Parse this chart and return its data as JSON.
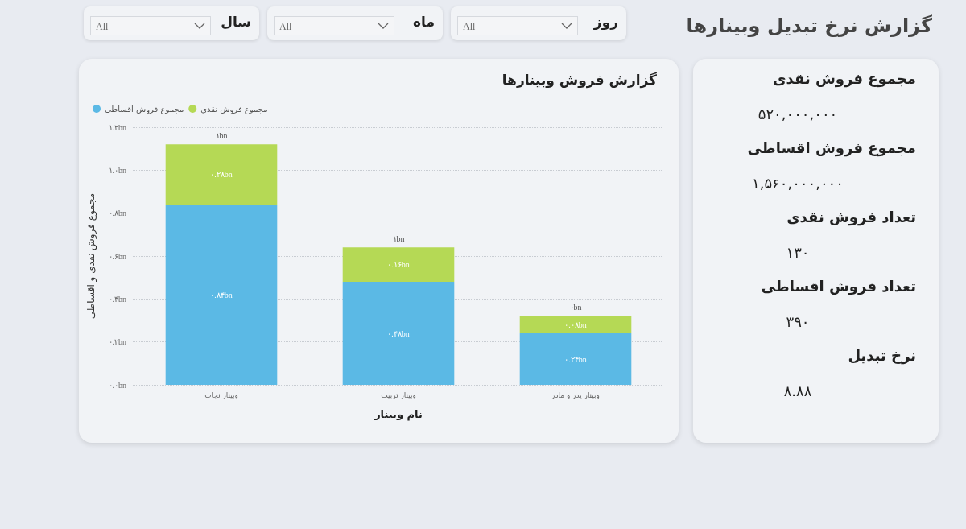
{
  "chart_data": [
    {
      "type": "bar",
      "title": "گزارش فروش وبینارها",
      "xlabel": "نام وبینار",
      "ylabel": "مجموع فروش نقدی و اقساطی",
      "categories": [
        "وبینار نجات",
        "وبینار تربیت",
        "وبینار پدر و مادر"
      ],
      "stacked": true,
      "series": [
        {
          "name": "مجموع فروش اقساطی",
          "color": "#5bb9e5",
          "values": [
            0.84,
            0.48,
            0.24
          ],
          "value_labels": [
            "۰.۸۴bn",
            "۰.۴۸bn",
            "۰.۲۴bn"
          ]
        },
        {
          "name": "مجموع فروش نقدی",
          "color": "#b5d955",
          "values": [
            0.28,
            0.16,
            0.08
          ],
          "value_labels": [
            "۰.۲۸bn",
            "۰.۱۶bn",
            "۰.۰۸bn"
          ]
        }
      ],
      "totals": [
        "۱bn",
        "۱bn",
        "۰bn"
      ],
      "ylim": [
        0,
        1.2
      ],
      "yticks": [
        {
          "value": 0,
          "label": "۰.۰bn"
        },
        {
          "value": 0.2,
          "label": "۰.۲bn"
        },
        {
          "value": 0.4,
          "label": "۰.۴bn"
        },
        {
          "value": 0.6,
          "label": "۰.۶bn"
        },
        {
          "value": 0.8,
          "label": "۰.۸bn"
        },
        {
          "value": 1.0,
          "label": "۱.۰bn"
        },
        {
          "value": 1.2,
          "label": "۱.۲bn"
        }
      ],
      "grid": "y",
      "legend": "top left"
    },
    {
      "type": "other",
      "title": "گزارش نرخ تبدیل وبینارها",
      "annotations": [
        "مجموع فروش نقدی",
        "۵۲۰,۰۰۰,۰۰۰",
        "مجموع فروش اقساطی",
        "۱,۵۶۰,۰۰۰,۰۰۰",
        "تعداد فروش نقدی",
        "۱۳۰",
        "تعداد فروش اقساطی",
        "۳۹۰",
        "نرخ تبدیل",
        "۸.۸۸"
      ]
    },
    {
      "type": "other",
      "annotations": [
        "روز",
        "All",
        "ماه",
        "All",
        "سال",
        "All"
      ]
    }
  ]
}
